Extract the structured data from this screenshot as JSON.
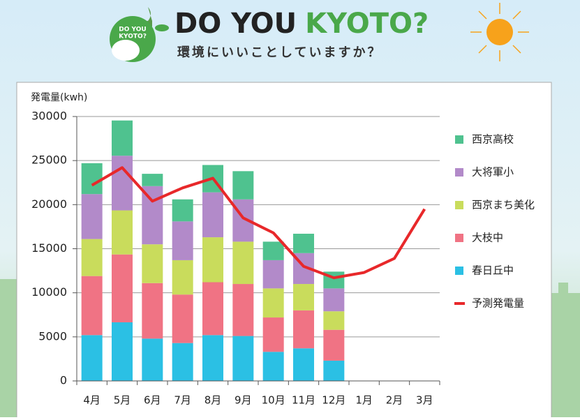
{
  "header": {
    "badge": [
      "DO YOU",
      "KYOTO?"
    ],
    "title_1": "DO YOU",
    "title_2": "KYOTO?",
    "subtitle": "環境にいいことしていますか？"
  },
  "chart_data": {
    "type": "bar",
    "stacked": true,
    "y_label": "発電量(kwh)",
    "categories": [
      "4月",
      "5月",
      "6月",
      "7月",
      "8月",
      "9月",
      "10月",
      "11月",
      "12月",
      "1月",
      "2月",
      "3月"
    ],
    "series": [
      {
        "name": "春日丘中",
        "color": "#2bc0e4",
        "values": [
          5200,
          6650,
          4800,
          4300,
          5200,
          5100,
          3300,
          3700,
          2300,
          null,
          null,
          null
        ]
      },
      {
        "name": "大枝中",
        "color": "#f07384",
        "values": [
          6700,
          7700,
          6300,
          5500,
          6000,
          5900,
          3900,
          4300,
          3500,
          null,
          null,
          null
        ]
      },
      {
        "name": "西京まち美化",
        "color": "#c9dc5c",
        "values": [
          4200,
          5000,
          4400,
          3900,
          5100,
          4800,
          3300,
          3000,
          2100,
          null,
          null,
          null
        ]
      },
      {
        "name": "大将軍小",
        "color": "#b28ac9",
        "values": [
          5100,
          6200,
          6600,
          4400,
          5100,
          4800,
          3200,
          3500,
          2600,
          null,
          null,
          null
        ]
      },
      {
        "name": "西京高校",
        "color": "#4fc28f",
        "values": [
          3500,
          4000,
          1400,
          2500,
          3100,
          3200,
          2100,
          2200,
          1900,
          null,
          null,
          null
        ]
      },
      {
        "name": "予測発電量",
        "type": "line",
        "color": "#e8282a",
        "values": [
          22200,
          24200,
          20400,
          21900,
          23000,
          18500,
          16800,
          13000,
          11700,
          12300,
          13900,
          19500
        ]
      }
    ],
    "ylim": [
      0,
      30000
    ],
    "yticks": [
      0,
      5000,
      10000,
      15000,
      20000,
      25000,
      30000
    ],
    "grid": true,
    "legend": "right"
  }
}
